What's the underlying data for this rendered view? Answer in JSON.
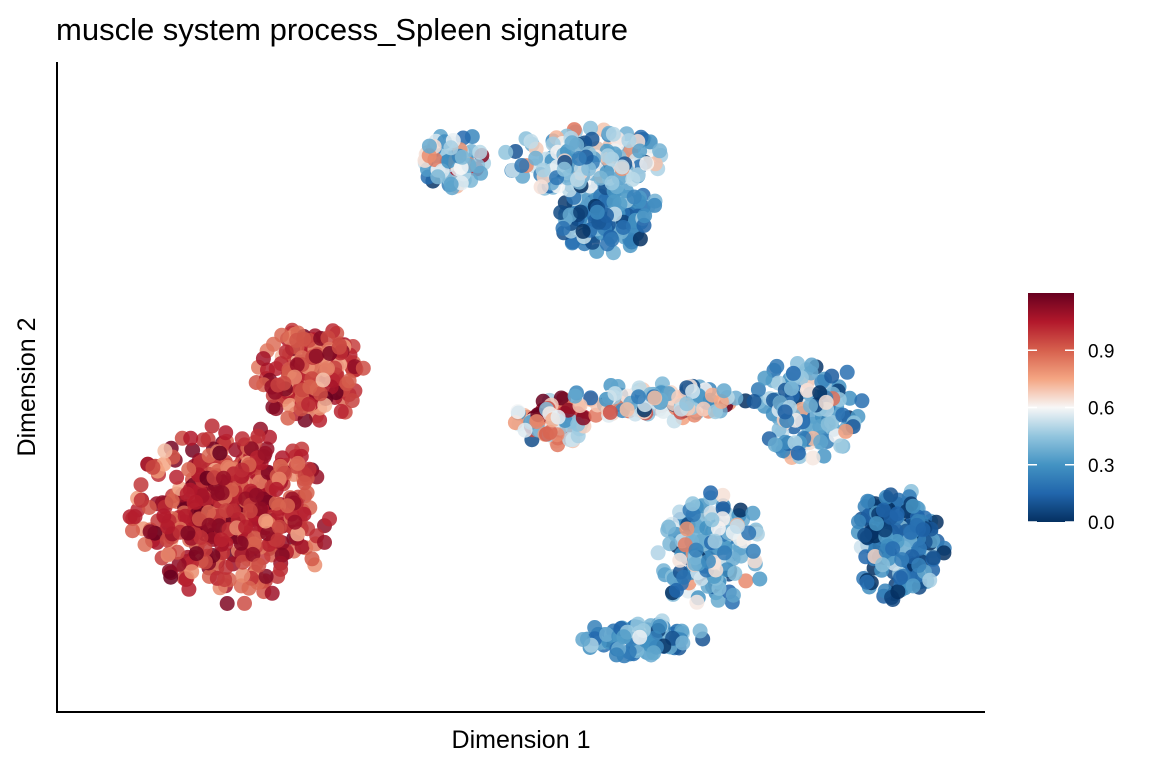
{
  "chart_data": {
    "type": "scatter",
    "title": "muscle system process_Spleen signature",
    "xlabel": "Dimension 1",
    "ylabel": "Dimension 2",
    "x_ticks_shown": false,
    "y_ticks_shown": false,
    "grid": false,
    "legend_placement": "right",
    "colorbar": {
      "min": 0.0,
      "max": 1.2,
      "ticks": [
        {
          "value": 0.0,
          "label": "0.0"
        },
        {
          "value": 0.3,
          "label": "0.3"
        },
        {
          "value": 0.6,
          "label": "0.6"
        },
        {
          "value": 0.9,
          "label": "0.9"
        }
      ],
      "colors": [
        "#053061",
        "#2166ac",
        "#4393c3",
        "#92c5de",
        "#f7f7f7",
        "#f4a582",
        "#d6604d",
        "#b2182b",
        "#67001f"
      ]
    },
    "xlim": [
      0,
      100
    ],
    "ylim": [
      0,
      100
    ],
    "clusters": [
      {
        "cx": 18,
        "cy": 30,
        "rx": 11,
        "ry": 14,
        "n": 520,
        "mean": 1.0,
        "spread": 0.12
      },
      {
        "cx": 27,
        "cy": 52,
        "rx": 6,
        "ry": 8,
        "n": 200,
        "mean": 0.98,
        "spread": 0.12
      },
      {
        "cx": 60,
        "cy": 78,
        "rx": 6,
        "ry": 6,
        "n": 160,
        "mean": 0.25,
        "spread": 0.15
      },
      {
        "cx": 58,
        "cy": 87,
        "rx": 9,
        "ry": 5,
        "n": 200,
        "mean": 0.45,
        "spread": 0.2
      },
      {
        "cx": 43,
        "cy": 87,
        "rx": 4,
        "ry": 5,
        "n": 90,
        "mean": 0.45,
        "spread": 0.25
      },
      {
        "cx": 54,
        "cy": 45,
        "rx": 4,
        "ry": 4,
        "n": 90,
        "mean": 0.75,
        "spread": 0.28
      },
      {
        "cx": 66,
        "cy": 48,
        "rx": 10,
        "ry": 3,
        "n": 140,
        "mean": 0.5,
        "spread": 0.25
      },
      {
        "cx": 83,
        "cy": 47,
        "rx": 6,
        "ry": 8,
        "n": 150,
        "mean": 0.35,
        "spread": 0.2
      },
      {
        "cx": 93,
        "cy": 25,
        "rx": 5,
        "ry": 9,
        "n": 220,
        "mean": 0.2,
        "spread": 0.14
      },
      {
        "cx": 72,
        "cy": 24,
        "rx": 6,
        "ry": 9,
        "n": 200,
        "mean": 0.38,
        "spread": 0.2
      },
      {
        "cx": 64,
        "cy": 10,
        "rx": 7,
        "ry": 3,
        "n": 110,
        "mean": 0.3,
        "spread": 0.15
      }
    ]
  }
}
